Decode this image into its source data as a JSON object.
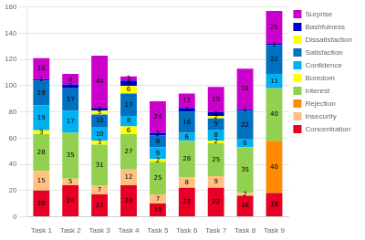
{
  "chart_data": {
    "type": "bar",
    "stacked": true,
    "data_labels": true,
    "grid": true,
    "legend": "right",
    "categories": [
      "Task 1",
      "Task 2",
      "Task 3",
      "Task 4",
      "Task 5",
      "Task 6",
      "Task 7",
      "Task 8",
      "Task 9"
    ],
    "series": [
      {
        "name": "Concentration",
        "color": "#e60026",
        "values": [
          20,
          24,
          17,
          24,
          10,
          22,
          22,
          16,
          18
        ]
      },
      {
        "name": "Insecurity",
        "color": "#ffc080",
        "values": [
          15,
          5,
          7,
          12,
          7,
          8,
          9,
          2,
          0
        ]
      },
      {
        "name": "Rejection",
        "color": "#ff8c00",
        "values": [
          0,
          0,
          0,
          0,
          0,
          0,
          0,
          0,
          40
        ]
      },
      {
        "name": "Interest",
        "color": "#92d050",
        "values": [
          28,
          35,
          31,
          27,
          25,
          28,
          25,
          35,
          40
        ]
      },
      {
        "name": "Boredom",
        "color": "#ffff00",
        "values": [
          3,
          0,
          3,
          6,
          2,
          0,
          2,
          0,
          0
        ]
      },
      {
        "name": "Confidence",
        "color": "#00b0f0",
        "values": [
          19,
          17,
          10,
          8,
          9,
          6,
          8,
          6,
          11
        ]
      },
      {
        "name": "Satisfaction",
        "color": "#0070c0",
        "values": [
          19,
          17,
          10,
          17,
          9,
          16,
          9,
          22,
          22
        ]
      },
      {
        "name": "Dissatisfaction",
        "color": "#ffff00",
        "values": [
          0,
          0,
          3,
          6,
          0,
          0,
          2,
          0,
          0
        ]
      },
      {
        "name": "Bashfulness",
        "color": "#0000cd",
        "values": [
          1,
          3,
          2,
          4,
          2,
          3,
          3,
          1,
          1
        ]
      },
      {
        "name": "Surprise",
        "color": "#cc00cc",
        "values": [
          16,
          8,
          40,
          3,
          24,
          11,
          19,
          31,
          25
        ]
      }
    ],
    "ylim": [
      0,
      160
    ],
    "yticks": [
      0,
      20,
      40,
      60,
      80,
      100,
      120,
      140,
      160
    ]
  }
}
